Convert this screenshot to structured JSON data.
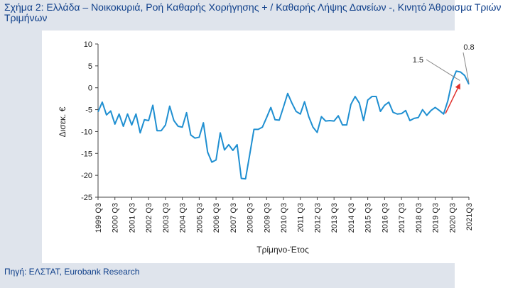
{
  "title": "Σχήμα 2: Ελλάδα – Νοικοκυριά, Ροή Καθαρής Χορήγησης + / Καθαρής Λήψης Δανείων -, Κινητό Άθροισμα Τριών Τριμήνων",
  "source": "Πηγή: ΕΛΣΤΑΤ, Eurobank Research",
  "colors": {
    "line": "#1f8fd1",
    "arrow": "#e0302c",
    "title": "#0f3f8a",
    "panel": "#dfe4ec"
  },
  "chart_data": {
    "type": "line",
    "xlabel": "Τρίμηνο-Έτος",
    "ylabel": "Δισεκ. €",
    "ylim": [
      -25,
      10
    ],
    "yticks": [
      "10",
      "5",
      "0",
      "-5",
      "-10",
      "-15",
      "-20",
      "-25"
    ],
    "xtick_labels": [
      "1999 Q3",
      "2000 Q3",
      "2001 Q3",
      "2002 Q3",
      "2003 Q3",
      "2004 Q3",
      "2005 Q3",
      "2006 Q3",
      "2007 Q3",
      "2008 Q3",
      "2009 Q3",
      "2010 Q3",
      "2011 Q3",
      "2012 Q3",
      "2013 Q3",
      "2014 Q3",
      "2015 Q3",
      "2016 Q3",
      "2017 Q3",
      "2018 Q3",
      "2019 Q3",
      "2020 Q3",
      "2021Q3"
    ],
    "grid": false,
    "annotations": [
      {
        "text": "1.5",
        "x_index": 86,
        "value": 1.5
      },
      {
        "text": "0.8",
        "x_index": 88,
        "value": 0.8
      }
    ],
    "series": [
      {
        "values": [
          -5.5,
          -3.3,
          -6.2,
          -5.3,
          -8.3,
          -6,
          -8.8,
          -6,
          -8.5,
          -6,
          -10.3,
          -7.3,
          -7.5,
          -4,
          -9.8,
          -9.8,
          -8.5,
          -4.2,
          -7.5,
          -8.8,
          -9,
          -5.7,
          -10.8,
          -11.5,
          -11.3,
          -8,
          -14.7,
          -17,
          -16.5,
          -10.3,
          -14.2,
          -13,
          -14.3,
          -13,
          -20.7,
          -20.8,
          -15.2,
          -9.5,
          -9.5,
          -9,
          -6.8,
          -4.5,
          -7.3,
          -7.4,
          -4.4,
          -1.3,
          -3.5,
          -5.4,
          -6,
          -3.2,
          -6.6,
          -9,
          -10.2,
          -6.6,
          -7.6,
          -7.5,
          -7.6,
          -6.4,
          -8.5,
          -8.5,
          -3.8,
          -2,
          -3.5,
          -7.5,
          -2.8,
          -2,
          -2,
          -5.4,
          -4,
          -3.3,
          -5.6,
          -6,
          -5.9,
          -5.2,
          -7.5,
          -7,
          -6.8,
          -5,
          -6.3,
          -5.2,
          -4.5,
          -5.2,
          -6,
          -3,
          1.5,
          3.8,
          3.6,
          2.8,
          0.8
        ]
      }
    ]
  }
}
